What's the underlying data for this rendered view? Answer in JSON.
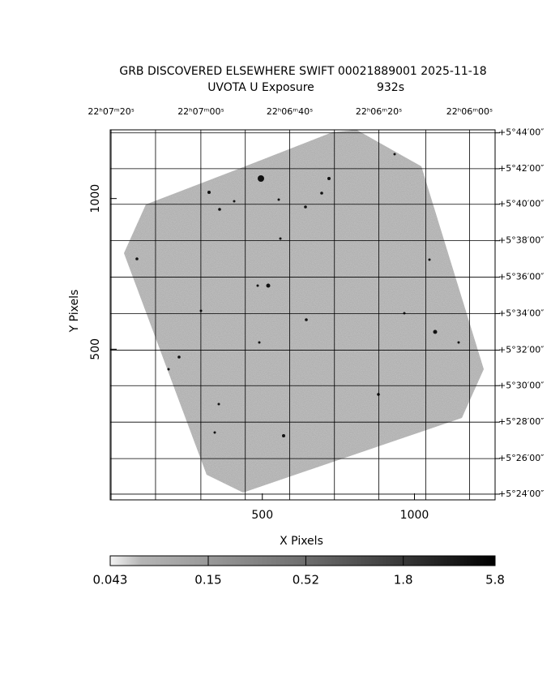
{
  "chart_data": {
    "type": "image",
    "title": "GRB DISCOVERED ELSEWHERE SWIFT 00021889001 2025-11-18",
    "subtitle": "UVOTA U Exposure",
    "exposure": "932s",
    "xlabel": "X Pixels",
    "ylabel": "Y Pixels",
    "xlim": [
      0,
      1265
    ],
    "ylim": [
      0,
      1228
    ],
    "xticks": [
      500,
      1000
    ],
    "yticks": [
      500,
      1000
    ],
    "x2ticks": [
      {
        "value": 3,
        "label": "22ʰ07ᵐ20ˢ"
      },
      {
        "value": 149,
        "label": null
      },
      {
        "value": 298,
        "label": "22ʰ07ᵐ00ˢ"
      },
      {
        "value": 444,
        "label": null
      },
      {
        "value": 590,
        "label": "22ʰ06ᵐ40ˢ"
      },
      {
        "value": 737,
        "label": null
      },
      {
        "value": 883,
        "label": "22ʰ06ᵐ20ˢ"
      },
      {
        "value": 1037,
        "label": null
      },
      {
        "value": 1181,
        "label": "22ʰ06ᵐ00ˢ"
      }
    ],
    "y2ticks": [
      {
        "value": 1218,
        "label": "+5°44′00″"
      },
      {
        "value": 1099,
        "label": "+5°42′00″"
      },
      {
        "value": 981,
        "label": "+5°40′00″"
      },
      {
        "value": 860,
        "label": "+5°38′00″"
      },
      {
        "value": 739,
        "label": "+5°36′00″"
      },
      {
        "value": 618,
        "label": "+5°34′00″"
      },
      {
        "value": 497,
        "label": "+5°32′00″"
      },
      {
        "value": 379,
        "label": "+5°30′00″"
      },
      {
        "value": 258,
        "label": "+5°28′00″"
      },
      {
        "value": 137,
        "label": "+5°26′00″"
      },
      {
        "value": 19,
        "label": "+5°24′00″"
      }
    ],
    "grid": true,
    "colorbar": {
      "lim": [
        0.043,
        5.8
      ],
      "ticks": [
        0.043,
        0.15,
        0.52,
        1.8,
        5.8
      ],
      "log": true
    }
  }
}
